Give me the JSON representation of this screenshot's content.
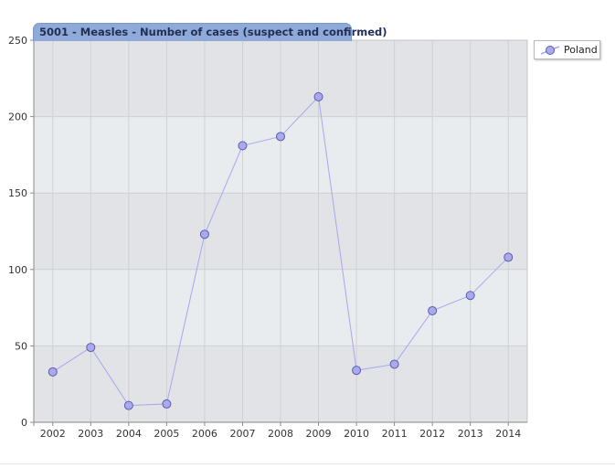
{
  "chart_data": {
    "type": "line",
    "title": "5001 - Measles - Number of cases (suspect and confirmed)",
    "xlabel": "",
    "ylabel": "",
    "x": [
      "2002",
      "2003",
      "2004",
      "2005",
      "2006",
      "2007",
      "2008",
      "2009",
      "2010",
      "2011",
      "2012",
      "2013",
      "2014"
    ],
    "series": [
      {
        "name": "Poland",
        "values": [
          33,
          49,
          11,
          12,
          123,
          181,
          187,
          213,
          34,
          38,
          73,
          83,
          108
        ]
      }
    ],
    "ylim": [
      0,
      250
    ],
    "yticks": [
      0,
      50,
      100,
      150,
      200,
      250
    ],
    "grid": true,
    "legend_position": "top-right",
    "colors": {
      "line": "#a7a7ef",
      "marker_fill": "#a9a9ec",
      "marker_stroke": "#5b5bb0",
      "band_dark": "#e2e3e6",
      "band_light": "#e8ecef",
      "title_bg": "#8fa9d8"
    }
  }
}
